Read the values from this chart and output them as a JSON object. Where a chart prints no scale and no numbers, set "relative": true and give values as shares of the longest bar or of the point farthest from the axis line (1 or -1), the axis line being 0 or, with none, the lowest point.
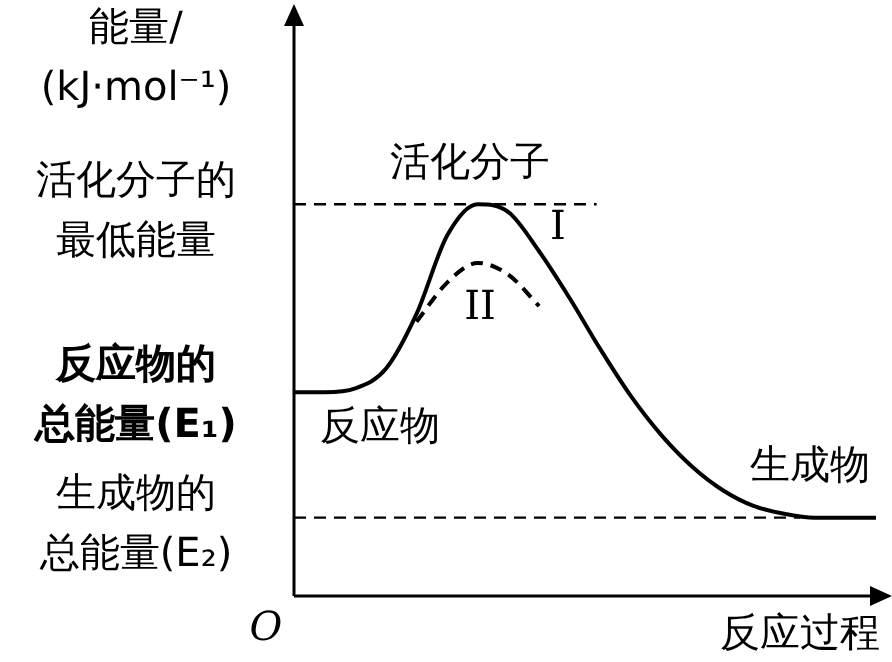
{
  "chart_data": {
    "type": "line",
    "relative": true,
    "ylabel": "能量/\n(kJ·mol⁻¹)",
    "xlabel": "反应过程",
    "categories": [
      null,
      null,
      null,
      null,
      null,
      null,
      null,
      null,
      null,
      null,
      null,
      null,
      null,
      null,
      null,
      null,
      null,
      null,
      null,
      null
    ],
    "series": [
      {
        "name": "I",
        "color": "#000000",
        "line_style": "solid",
        "values": [
          0.52,
          0.52,
          0.53,
          0.58,
          0.72,
          0.92,
          1.0,
          0.98,
          0.88,
          0.76,
          0.63,
          0.51,
          0.41,
          0.33,
          0.27,
          0.23,
          0.21,
          0.2,
          0.2,
          0.2
        ]
      },
      {
        "name": "II",
        "color": "#000000",
        "line_style": "dashed",
        "values": [
          null,
          null,
          null,
          null,
          0.7,
          0.8,
          0.85,
          0.82,
          0.74,
          null,
          null,
          null,
          null,
          null,
          null,
          null,
          null,
          null,
          null,
          null
        ]
      }
    ],
    "ref_lines": [
      {
        "axis": "y",
        "value": 1.0,
        "label": "活化分子的最低能量",
        "line_style": "dashed"
      },
      {
        "axis": "y",
        "value": 0.2,
        "label": "生成物的总能量(E₂)",
        "line_style": "dashed"
      }
    ],
    "annotations": [
      "反应物的总能量(E₁)",
      "活化分子",
      "反应物",
      "生成物",
      "O"
    ],
    "marker": "none",
    "legend": false
  }
}
